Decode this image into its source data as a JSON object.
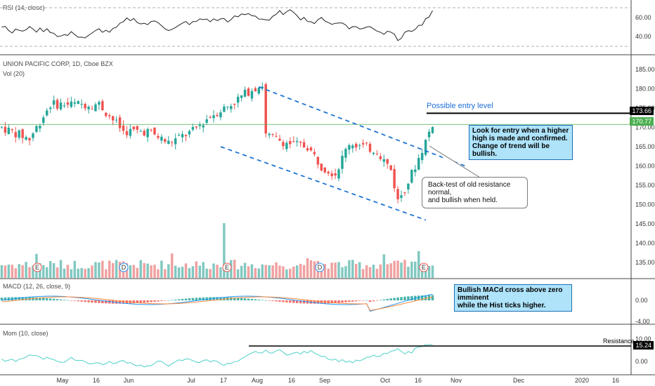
{
  "chart_data": {
    "type": "candlestick",
    "panes": {
      "rsi": {
        "label": "RSI (14, close)",
        "ticks": [
          "60.00",
          "40.00"
        ],
        "ylim": [
          33,
          74
        ],
        "levels": [
          70,
          30
        ],
        "seed": 11
      },
      "price": {
        "title": "UNION PACIFIC CORP, 1D, Cboe BZX",
        "vol_label": "Vol (20)",
        "ticks": [
          "185.00",
          "180.00",
          "175.00",
          "170.00",
          "165.00",
          "160.00",
          "155.00",
          "150.00",
          "145.00",
          "140.00",
          "135.00"
        ],
        "ylim": [
          131,
          187
        ],
        "last_price_label": "170.77",
        "entry_level_value": 173.66,
        "entry_level_label": "173.66",
        "entry_level_text": "Possible entry level",
        "channel_upper": [
          [
            0.395,
            180.5
          ],
          [
            0.71,
            160.0
          ]
        ],
        "channel_lower": [
          [
            0.337,
            165.0
          ],
          [
            0.65,
            146.0
          ]
        ]
      },
      "macd": {
        "label": "MACD (12, 26, close, 9)",
        "ticks": [
          "0.00"
        ],
        "bottom_tick": "-4.00"
      },
      "mom": {
        "label": "Mom (10, close)",
        "ticks": [
          "0.00"
        ],
        "top_tick": "10.00",
        "resistance_value": "15.24",
        "resistance_text": "Resistance"
      }
    },
    "x_labels": [
      "May",
      "16",
      "Jun",
      "Jul",
      "17",
      "Aug",
      "16",
      "Sep",
      "Oct",
      "16",
      "Nov",
      "Dec",
      "2020",
      "16"
    ],
    "events": [
      "E",
      "D",
      "E",
      "D",
      "E"
    ],
    "annotations": {
      "entry_note": "Look for entry when a higher high is made and confirmed.\nChange of trend will be bullish.",
      "retest_note": "Back-test of old resistance normal,\nand bullish when held.",
      "macd_note": "Bullish MACd cross above zero imminent\nwhile the Hist ticks higher."
    }
  },
  "colors": {
    "up": "#26a69a",
    "down": "#ef5350",
    "vol_up": "#80c8c0",
    "vol_down": "#f0a0a0",
    "rsi_line": "#222222",
    "macd_line": "#2196f3",
    "signal_line": "#ff8a3d",
    "mom_line": "#4dd0c8",
    "channel": "#1e73d2",
    "last_price_bg": "#4caf50",
    "level_bg": "#000000"
  }
}
